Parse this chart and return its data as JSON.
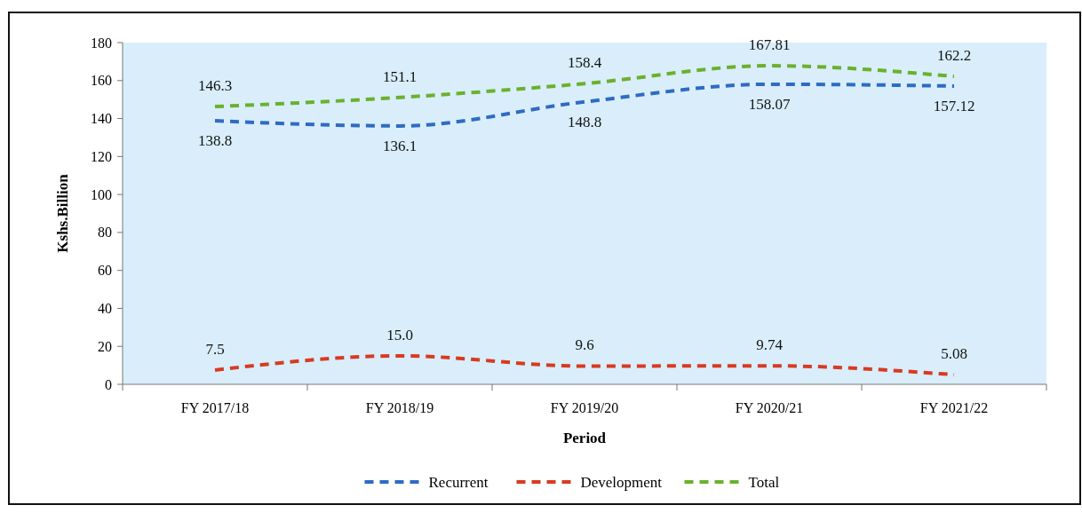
{
  "chart_data": {
    "type": "line",
    "xlabel": "Period",
    "ylabel": "Kshs.Billion",
    "categories": [
      "FY 2017/18",
      "FY 2018/19",
      "FY 2019/20",
      "FY 2020/21",
      "FY 2021/22"
    ],
    "ylim": [
      0,
      180
    ],
    "yticks": [
      0,
      20,
      40,
      60,
      80,
      100,
      120,
      140,
      160,
      180
    ],
    "grid": false,
    "legend": "bottom",
    "line_style": "dashed",
    "marker": "none",
    "series": [
      {
        "name": "Recurrent",
        "color": "#2e6bc4",
        "values": [
          138.8,
          136.1,
          148.8,
          158.07,
          157.12
        ],
        "value_labels": [
          "138.8",
          "136.1",
          "148.8",
          "158.07",
          "157.12"
        ]
      },
      {
        "name": "Development",
        "color": "#d83a22",
        "values": [
          7.5,
          15.0,
          9.6,
          9.74,
          5.08
        ],
        "value_labels": [
          "7.5",
          "15.0",
          "9.6",
          "9.74",
          "5.08"
        ]
      },
      {
        "name": "Total",
        "color": "#6bb02e",
        "values": [
          146.3,
          151.1,
          158.4,
          167.81,
          162.2
        ],
        "value_labels": [
          "146.3",
          "151.1",
          "158.4",
          "167.81",
          "162.2"
        ]
      }
    ]
  }
}
